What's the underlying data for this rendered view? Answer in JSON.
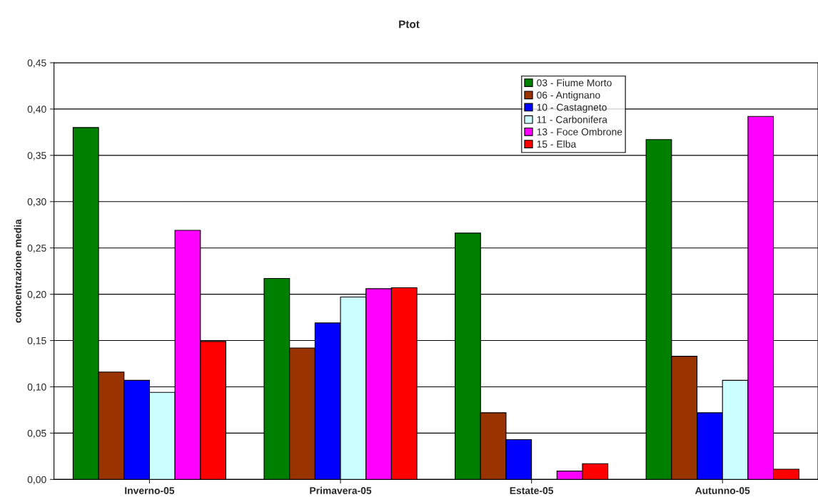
{
  "chart_data": {
    "type": "bar",
    "title": "Ptot",
    "ylabel": "concentrazione media",
    "categories": [
      "Inverno-05",
      "Primavera-05",
      "Estate-05",
      "Autunno-05"
    ],
    "series": [
      {
        "name": "03 - Fiume Morto",
        "color": "#008000",
        "values": [
          0.38,
          0.217,
          0.266,
          0.367
        ]
      },
      {
        "name": "06 - Antignano",
        "color": "#993300",
        "values": [
          0.116,
          0.142,
          0.072,
          0.133
        ]
      },
      {
        "name": "10 - Castagneto",
        "color": "#0000ff",
        "values": [
          0.107,
          0.169,
          0.043,
          0.072
        ]
      },
      {
        "name": "11 - Carbonifera",
        "color": "#ccffff",
        "values": [
          0.094,
          0.197,
          null,
          0.107
        ]
      },
      {
        "name": "13 - Foce Ombrone",
        "color": "#ff00ff",
        "values": [
          0.269,
          0.206,
          0.009,
          0.392
        ]
      },
      {
        "name": "15 - Elba",
        "color": "#ff0000",
        "values": [
          0.149,
          0.207,
          0.017,
          0.011
        ]
      }
    ],
    "ylim": [
      0,
      0.45
    ],
    "yticks": [
      {
        "value": 0,
        "label": "0,00"
      },
      {
        "value": 0.05,
        "label": "0,05"
      },
      {
        "value": 0.1,
        "label": "0,10"
      },
      {
        "value": 0.15,
        "label": "0,15"
      },
      {
        "value": 0.2,
        "label": "0,20"
      },
      {
        "value": 0.25,
        "label": "0,25"
      },
      {
        "value": 0.3,
        "label": "0,30"
      },
      {
        "value": 0.35,
        "label": "0,35"
      },
      {
        "value": 0.4,
        "label": "0,40"
      },
      {
        "value": 0.45,
        "label": "0,45"
      }
    ],
    "grid": "y",
    "legend": "top"
  }
}
